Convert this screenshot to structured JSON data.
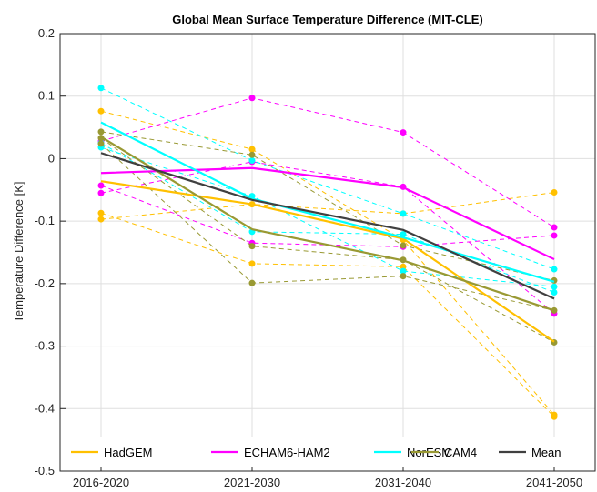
{
  "chart_data": {
    "type": "line",
    "title": "Global Mean Surface Temperature Difference (MIT-CLE)",
    "xlabel": "",
    "ylabel": "Temperature Difference [K]",
    "categories": [
      "2016-2020",
      "2021-2030",
      "2031-2040",
      "2041-2050"
    ],
    "ylim": [
      -0.5,
      0.2
    ],
    "yticks": [
      -0.5,
      -0.4,
      -0.3,
      -0.2,
      -0.1,
      0,
      0.1,
      0.2
    ],
    "ytick_labels": [
      "-0.5",
      "-0.4",
      "-0.3",
      "-0.2",
      "-0.1",
      "0",
      "0.1",
      "0.2"
    ],
    "grid": true,
    "legend_placement": "bottom",
    "series": [
      {
        "name": "HadGEM",
        "color": "#FFC000",
        "values": [
          -0.036,
          -0.073,
          -0.128,
          -0.293
        ],
        "members": [
          [
            0.076,
            0.015,
            -0.13,
            -0.41
          ],
          [
            -0.087,
            -0.168,
            -0.173,
            -0.413
          ],
          [
            -0.097,
            -0.073,
            -0.088,
            -0.054
          ]
        ]
      },
      {
        "name": "ECHAM6-HAM2",
        "color": "#FF00FF",
        "values": [
          -0.023,
          -0.015,
          -0.046,
          -0.161
        ],
        "members": [
          [
            0.028,
            0.097,
            0.042,
            -0.11
          ],
          [
            -0.043,
            -0.135,
            -0.141,
            -0.123
          ],
          [
            -0.055,
            -0.005,
            -0.045,
            -0.248
          ]
        ]
      },
      {
        "name": "NorESM",
        "color": "#00FFFF",
        "values": [
          0.058,
          -0.064,
          -0.126,
          -0.197
        ],
        "members": [
          [
            0.113,
            -0.003,
            -0.088,
            -0.177
          ],
          [
            0.025,
            -0.117,
            -0.121,
            -0.214
          ],
          [
            0.018,
            -0.06,
            -0.18,
            -0.205
          ]
        ]
      },
      {
        "name": "CAM4",
        "color": "#999933",
        "values": [
          0.035,
          -0.113,
          -0.163,
          -0.243
        ],
        "members": [
          [
            0.043,
            0.006,
            -0.139,
            -0.195
          ],
          [
            0.033,
            -0.14,
            -0.162,
            -0.294
          ],
          [
            0.024,
            -0.199,
            -0.188,
            -0.243
          ]
        ]
      },
      {
        "name": "Mean",
        "color": "#404040",
        "values": [
          0.009,
          -0.066,
          -0.114,
          -0.224
        ],
        "members": []
      }
    ]
  }
}
